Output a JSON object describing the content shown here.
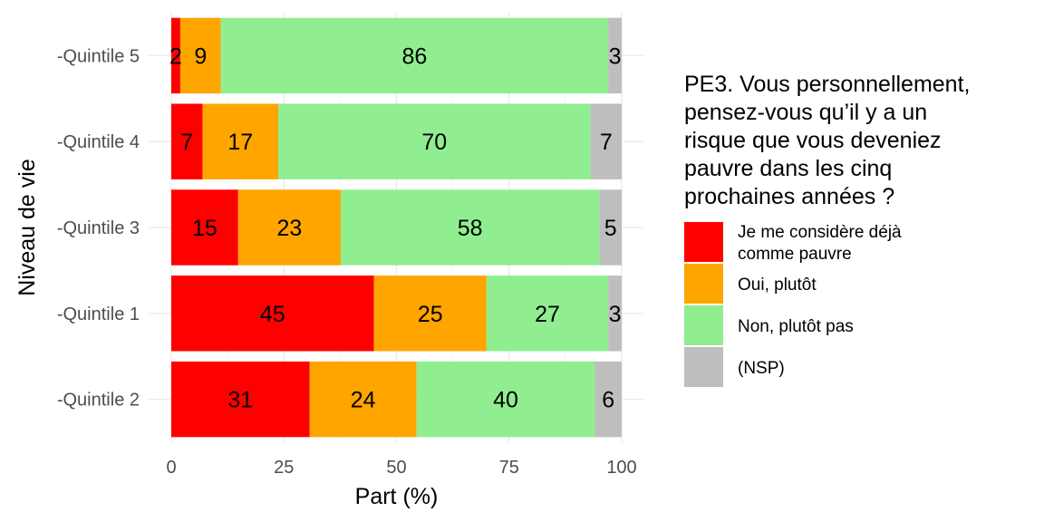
{
  "chart_data": {
    "type": "bar",
    "orientation": "horizontal",
    "stacked": true,
    "categories": [
      "-Quintile 5",
      "-Quintile 4",
      "-Quintile 3",
      "-Quintile 1",
      "-Quintile 2"
    ],
    "series": [
      {
        "name": "Je me considère déjà comme pauvre",
        "color": "#ff0000",
        "values": [
          2,
          7,
          15,
          45,
          31
        ],
        "label_lines": [
          "Je me considère déjà",
          "comme pauvre"
        ]
      },
      {
        "name": "Oui, plutôt",
        "color": "#ffa500",
        "values": [
          9,
          17,
          23,
          25,
          24
        ],
        "label_lines": [
          "Oui, plutôt"
        ]
      },
      {
        "name": "Non, plutôt pas",
        "color": "#90ee90",
        "values": [
          86,
          70,
          58,
          27,
          40
        ],
        "label_lines": [
          "Non, plutôt pas"
        ]
      },
      {
        "name": "(NSP)",
        "color": "#bebebe",
        "values": [
          3,
          7,
          5,
          3,
          6
        ],
        "label_lines": [
          "(NSP)"
        ]
      }
    ],
    "xlabel": "Part (%)",
    "ylabel": "Niveau de vie",
    "xlim": [
      0,
      100
    ],
    "x_ticks": [
      "0",
      "25",
      "50",
      "75",
      "100"
    ],
    "grid": true,
    "legend": {
      "position": "right",
      "title_lines": [
        "PE3. Vous personnellement,",
        "pensez-vous qu’il y a un",
        "risque que vous deveniez",
        "pauvre dans les cinq",
        "prochaines années ?"
      ]
    }
  }
}
